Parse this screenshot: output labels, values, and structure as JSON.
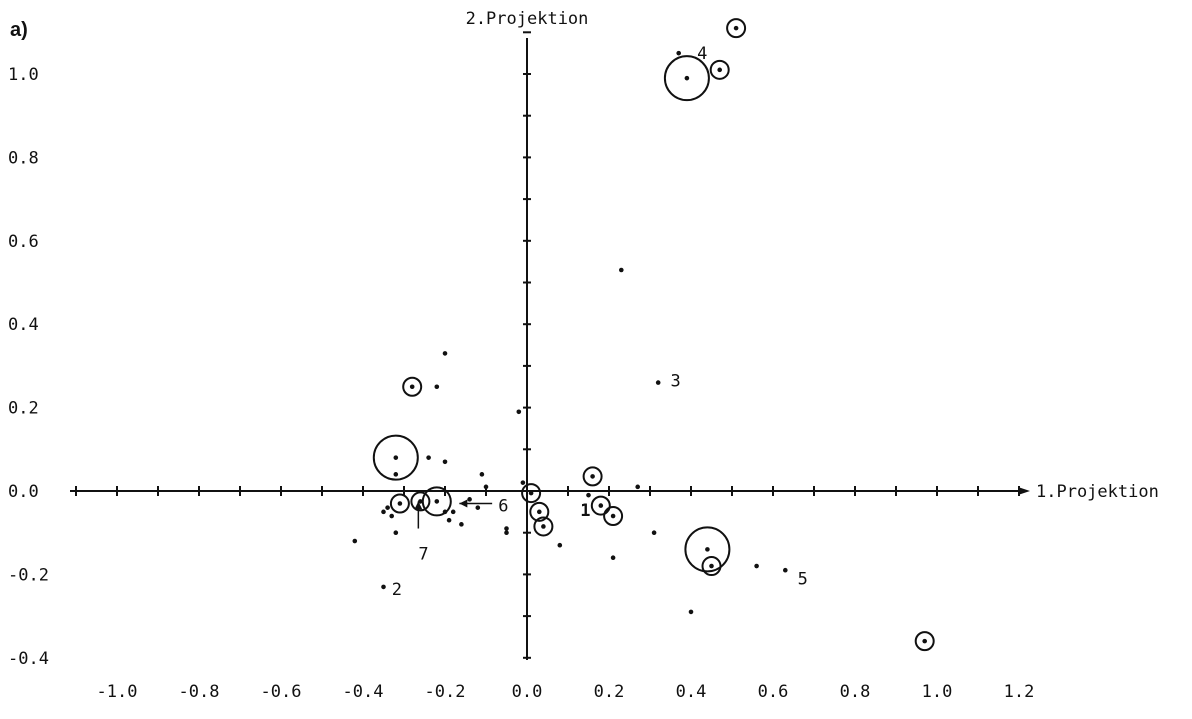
{
  "chart_data": {
    "type": "scatter",
    "panel_label": "a)",
    "xlabel": "1.Projektion",
    "ylabel": "2.Projektion",
    "xlim": [
      -1.1,
      1.2
    ],
    "ylim": [
      -0.42,
      1.13
    ],
    "x_ticks": [
      "-1.0",
      "-0.8",
      "-0.6",
      "-0.4",
      "-0.2",
      "0.0",
      "0.2",
      "0.4",
      "0.6",
      "0.8",
      "1.0",
      "1.2"
    ],
    "x_tick_values": [
      -1.0,
      -0.8,
      -0.6,
      -0.4,
      -0.2,
      0.0,
      0.2,
      0.4,
      0.6,
      0.8,
      1.0,
      1.2
    ],
    "y_ticks": [
      "1.0",
      "0.8",
      "0.6",
      "0.4",
      "0.2",
      "0.0",
      "-0.2",
      "-0.4"
    ],
    "y_tick_values": [
      1.0,
      0.8,
      0.6,
      0.4,
      0.2,
      0.0,
      -0.2,
      -0.4
    ],
    "points": [
      {
        "x": 0.39,
        "y": 0.99,
        "r": "large"
      },
      {
        "x": 0.51,
        "y": 1.11,
        "r": "small"
      },
      {
        "x": 0.47,
        "y": 1.01,
        "r": "small"
      },
      {
        "x": 0.37,
        "y": 1.05,
        "r": "none"
      },
      {
        "x": 0.23,
        "y": 0.53,
        "r": "none"
      },
      {
        "x": 0.32,
        "y": 0.26,
        "r": "none"
      },
      {
        "x": 0.16,
        "y": 0.035,
        "r": "small"
      },
      {
        "x": 0.18,
        "y": -0.035,
        "r": "small"
      },
      {
        "x": 0.21,
        "y": -0.06,
        "r": "small"
      },
      {
        "x": 0.44,
        "y": -0.14,
        "r": "large"
      },
      {
        "x": 0.45,
        "y": -0.18,
        "r": "small"
      },
      {
        "x": 0.97,
        "y": -0.36,
        "r": "small"
      },
      {
        "x": 0.56,
        "y": -0.18,
        "r": "none"
      },
      {
        "x": 0.63,
        "y": -0.19,
        "r": "none"
      },
      {
        "x": 0.4,
        "y": -0.29,
        "r": "none"
      },
      {
        "x": 0.31,
        "y": -0.1,
        "r": "none"
      },
      {
        "x": 0.21,
        "y": -0.16,
        "r": "none"
      },
      {
        "x": 0.27,
        "y": 0.01,
        "r": "none"
      },
      {
        "x": 0.15,
        "y": -0.01,
        "r": "none"
      },
      {
        "x": 0.01,
        "y": -0.005,
        "r": "small"
      },
      {
        "x": 0.03,
        "y": -0.05,
        "r": "small"
      },
      {
        "x": 0.04,
        "y": -0.085,
        "r": "small"
      },
      {
        "x": 0.08,
        "y": -0.13,
        "r": "none"
      },
      {
        "x": -0.02,
        "y": 0.19,
        "r": "none"
      },
      {
        "x": -0.01,
        "y": 0.02,
        "r": "none"
      },
      {
        "x": -0.32,
        "y": 0.08,
        "r": "large"
      },
      {
        "x": -0.31,
        "y": -0.03,
        "r": "small"
      },
      {
        "x": -0.26,
        "y": -0.025,
        "r": "small"
      },
      {
        "x": -0.22,
        "y": -0.025,
        "r": "medium"
      },
      {
        "x": -0.28,
        "y": 0.25,
        "r": "small"
      },
      {
        "x": -0.2,
        "y": 0.33,
        "r": "none"
      },
      {
        "x": -0.22,
        "y": 0.25,
        "r": "none"
      },
      {
        "x": -0.24,
        "y": 0.08,
        "r": "none"
      },
      {
        "x": -0.2,
        "y": 0.07,
        "r": "none"
      },
      {
        "x": -0.32,
        "y": 0.04,
        "r": "none"
      },
      {
        "x": -0.34,
        "y": -0.04,
        "r": "none"
      },
      {
        "x": -0.35,
        "y": -0.05,
        "r": "none"
      },
      {
        "x": -0.33,
        "y": -0.06,
        "r": "none"
      },
      {
        "x": -0.32,
        "y": -0.1,
        "r": "none"
      },
      {
        "x": -0.42,
        "y": -0.12,
        "r": "none"
      },
      {
        "x": -0.35,
        "y": -0.23,
        "r": "none"
      },
      {
        "x": -0.18,
        "y": -0.05,
        "r": "none"
      },
      {
        "x": -0.16,
        "y": -0.08,
        "r": "none"
      },
      {
        "x": -0.14,
        "y": -0.02,
        "r": "none"
      },
      {
        "x": -0.12,
        "y": -0.04,
        "r": "none"
      },
      {
        "x": -0.11,
        "y": 0.04,
        "r": "none"
      },
      {
        "x": -0.1,
        "y": 0.01,
        "r": "none"
      },
      {
        "x": -0.05,
        "y": -0.09,
        "r": "none"
      },
      {
        "x": -0.05,
        "y": -0.1,
        "r": "none"
      },
      {
        "x": -0.19,
        "y": -0.07,
        "r": "none"
      },
      {
        "x": -0.2,
        "y": -0.05,
        "r": "none"
      }
    ],
    "point_labels": [
      {
        "text": "1",
        "x": 0.13,
        "y": -0.045
      },
      {
        "text": "2",
        "x": -0.33,
        "y": -0.235
      },
      {
        "text": "3",
        "x": 0.35,
        "y": 0.265
      },
      {
        "text": "4",
        "x": 0.415,
        "y": 1.05
      },
      {
        "text": "5",
        "x": 0.66,
        "y": -0.21
      },
      {
        "text": "6",
        "x": -0.07,
        "y": -0.035
      },
      {
        "text": "7",
        "x": -0.265,
        "y": -0.15
      }
    ],
    "arrows": [
      {
        "label": "6",
        "from": [
          -0.085,
          -0.03
        ],
        "to": [
          -0.165,
          -0.03
        ]
      },
      {
        "label": "7",
        "from": [
          -0.265,
          -0.09
        ],
        "to": [
          -0.265,
          -0.025
        ]
      }
    ]
  }
}
